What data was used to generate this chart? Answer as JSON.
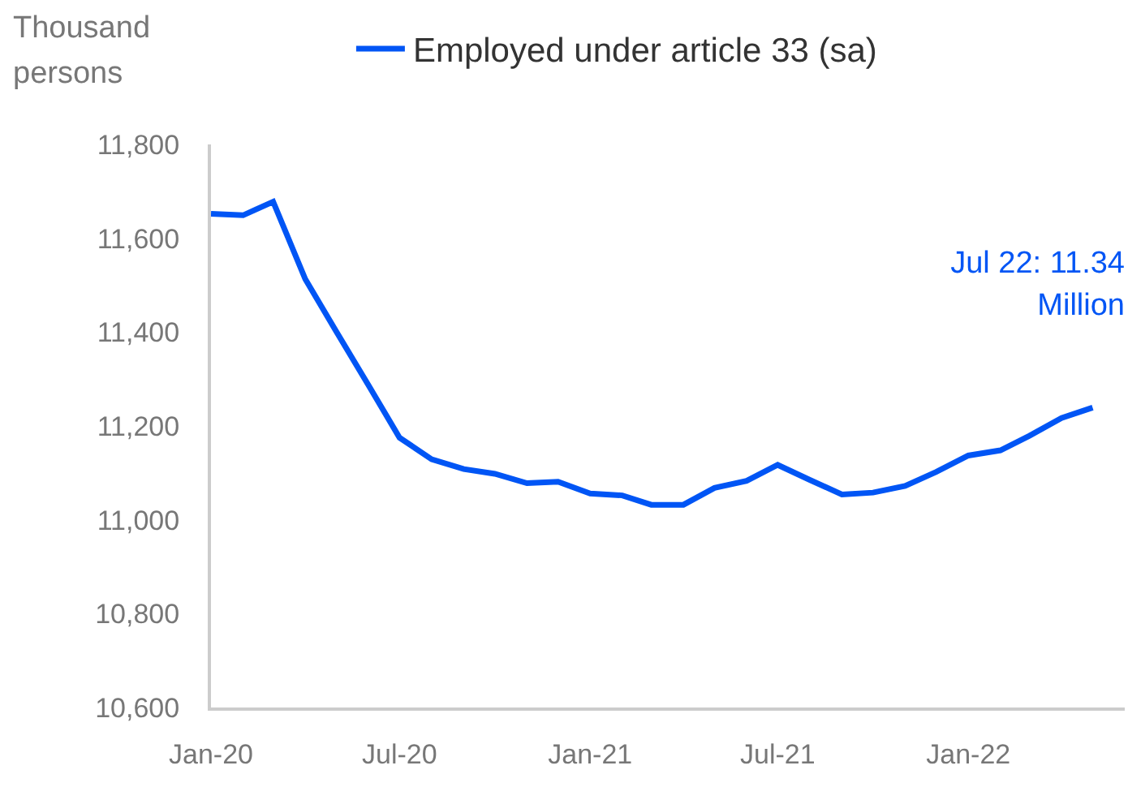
{
  "chart_data": {
    "type": "line",
    "ylabel": "Thousand persons",
    "legend": "top",
    "annotations": [
      "Jul 22: 11.34 Million"
    ],
    "x": [
      "2020-01",
      "2020-02",
      "2020-03",
      "2020-04",
      "2020-05",
      "2020-06",
      "2020-07",
      "2020-08",
      "2020-09",
      "2020-10",
      "2020-11",
      "2020-12",
      "2021-01",
      "2021-02",
      "2021-03",
      "2021-04",
      "2021-05",
      "2021-06",
      "2021-07",
      "2021-08",
      "2021-09",
      "2021-10",
      "2021-11",
      "2021-12",
      "2022-01",
      "2022-02",
      "2022-03",
      "2022-04",
      "2022-05"
    ],
    "series": [
      {
        "name": "Employed under article 33 (sa)",
        "color": "#0055f5",
        "values": [
          11652,
          11649,
          11678,
          11513,
          11401,
          11287,
          11175,
          11129,
          11108,
          11098,
          11078,
          11081,
          11056,
          11052,
          11032,
          11032,
          11068,
          11083,
          11117,
          11085,
          11054,
          11058,
          11072,
          11102,
          11137,
          11148,
          11179,
          11217,
          11239
        ]
      }
    ],
    "xlim": [
      "2020-01",
      "2022-06"
    ],
    "xticks": [
      {
        "value": "2020-01",
        "label": "Jan-20"
      },
      {
        "value": "2020-07",
        "label": "Jul-20"
      },
      {
        "value": "2021-01",
        "label": "Jan-21"
      },
      {
        "value": "2021-07",
        "label": "Jul-21"
      },
      {
        "value": "2022-01",
        "label": "Jan-22"
      }
    ],
    "ylim": [
      10600,
      11800
    ],
    "yticks": [
      {
        "value": 10600,
        "label": "10,600"
      },
      {
        "value": 10800,
        "label": "10,800"
      },
      {
        "value": 11000,
        "label": "11,000"
      },
      {
        "value": 11200,
        "label": "11,200"
      },
      {
        "value": 11400,
        "label": "11,400"
      },
      {
        "value": 11600,
        "label": "11,600"
      },
      {
        "value": 11800,
        "label": "11,800"
      }
    ],
    "grid": false,
    "marker": "none",
    "line_style": "solid"
  }
}
